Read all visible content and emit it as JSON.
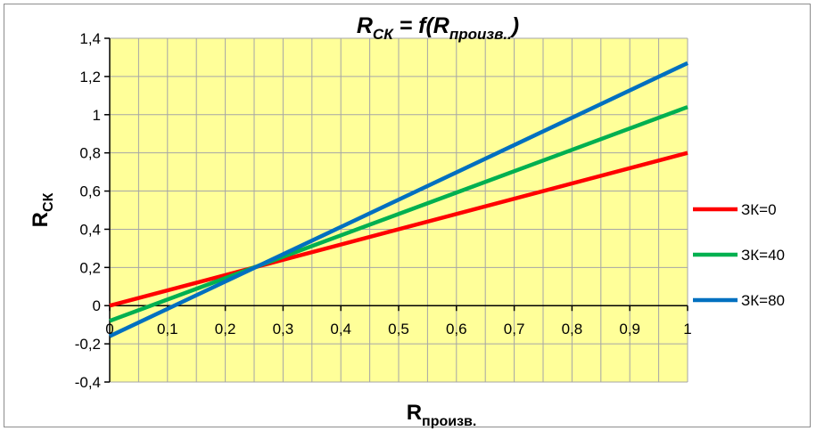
{
  "chart_data": {
    "type": "line",
    "title": {
      "main": "R",
      "sub": "СК",
      "middle": " = f(R",
      "sub2": "произв..",
      "end": ")"
    },
    "xlabel": {
      "main": "R",
      "sub": "произв."
    },
    "ylabel": {
      "main": "R",
      "sub": "СК"
    },
    "xlim": [
      0,
      1
    ],
    "ylim": [
      -0.4,
      1.4
    ],
    "x_ticks": [
      0,
      0.1,
      0.2,
      0.3,
      0.4,
      0.5,
      0.6,
      0.7,
      0.8,
      0.9,
      1
    ],
    "x_tick_labels": [
      "0",
      "0,1",
      "0,2",
      "0,3",
      "0,4",
      "0,5",
      "0,6",
      "0,7",
      "0,8",
      "0,9",
      "1"
    ],
    "y_ticks": [
      -0.4,
      -0.2,
      0,
      0.2,
      0.4,
      0.6,
      0.8,
      1,
      1.2,
      1.4
    ],
    "y_tick_labels": [
      "-0,4",
      "-0,2",
      "0",
      "0,2",
      "0,4",
      "0,6",
      "0,8",
      "1",
      "1,2",
      "1,4"
    ],
    "grid": true,
    "legend_position": "right",
    "plot_background": "#ffff99",
    "grid_color": "#a6a6a6",
    "series": [
      {
        "name": "ЗК=0",
        "color": "#ff0000",
        "x": [
          0,
          1
        ],
        "y": [
          0,
          0.8
        ]
      },
      {
        "name": "ЗК=40",
        "color": "#00b050",
        "x": [
          0,
          1
        ],
        "y": [
          -0.08,
          1.04
        ]
      },
      {
        "name": "ЗК=80",
        "color": "#0070c0",
        "x": [
          0,
          1
        ],
        "y": [
          -0.16,
          1.27
        ]
      }
    ]
  }
}
